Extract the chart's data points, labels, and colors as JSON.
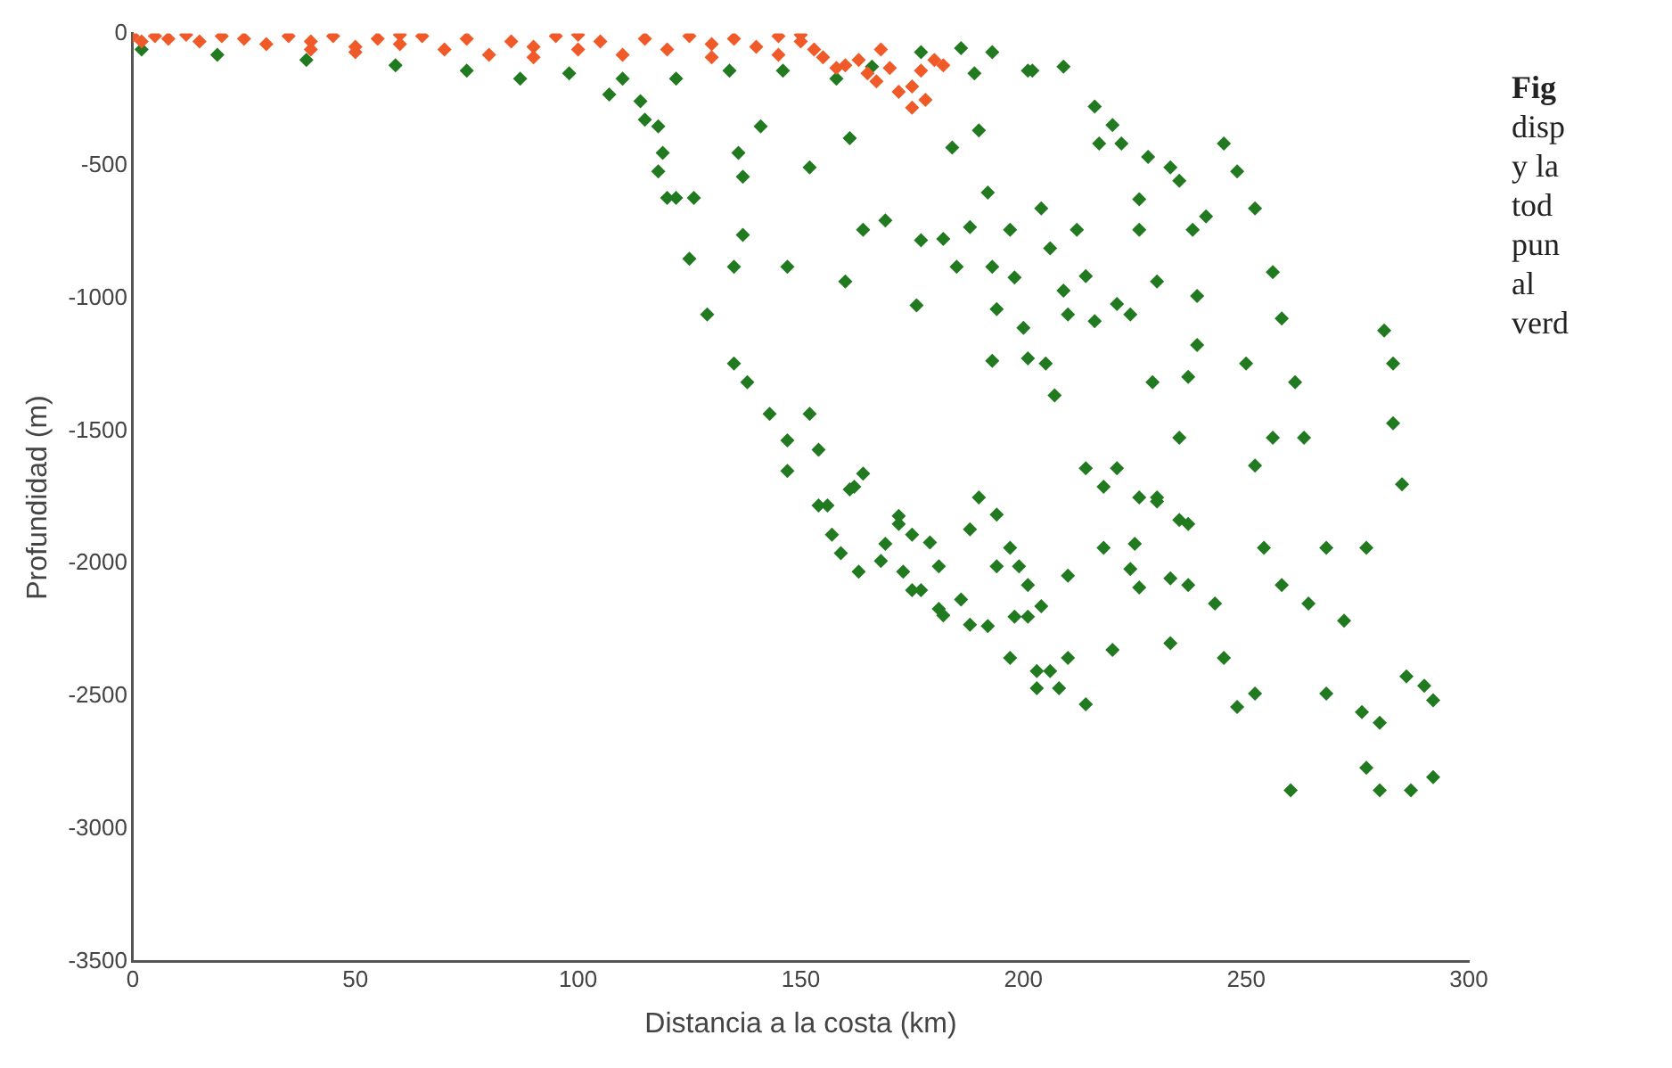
{
  "chart_data": {
    "type": "scatter",
    "xlabel": "Distancia a la costa (km)",
    "ylabel": "Profundidad (m)",
    "xlim": [
      0,
      300
    ],
    "xticks": [
      0,
      50,
      100,
      150,
      200,
      250,
      300
    ],
    "ylim": [
      -3500,
      0
    ],
    "yticks": [
      -3500,
      -3000,
      -2500,
      -2000,
      -1500,
      -1000,
      -500,
      0
    ],
    "grid": false,
    "legend": false,
    "marker": "diamond",
    "annotations": [
      "Fig",
      "disp",
      "y la",
      "tod",
      "pun",
      "al",
      "verd"
    ],
    "series": [
      {
        "color": "#217a1f",
        "x": [
          2,
          19,
          39,
          59,
          75,
          87,
          98,
          110,
          122,
          134,
          146,
          158,
          166,
          177,
          189,
          201,
          209,
          193,
          177,
          118,
          119,
          118,
          120,
          115,
          107,
          114,
          122,
          126,
          125,
          129,
          135,
          137,
          137,
          136,
          141,
          147,
          152,
          160,
          161,
          164,
          169,
          176,
          177,
          182,
          184,
          185,
          186,
          188,
          190,
          192,
          193,
          193,
          194,
          197,
          198,
          200,
          201,
          202,
          204,
          205,
          206,
          207,
          209,
          210,
          212,
          214,
          216,
          216,
          217,
          220,
          221,
          222,
          224,
          226,
          226,
          228,
          229,
          230,
          233,
          235,
          237,
          238,
          239,
          239,
          135,
          138,
          143,
          147,
          147,
          152,
          154,
          156,
          157,
          162,
          164,
          172,
          175,
          188,
          190,
          214,
          218,
          221,
          226,
          230,
          235,
          237,
          154,
          159,
          163,
          161,
          168,
          169,
          172,
          173,
          175,
          177,
          179,
          181,
          181,
          182,
          186,
          188,
          192,
          194,
          194,
          197,
          197,
          198,
          199,
          201,
          201,
          203,
          203,
          204,
          206,
          208,
          210,
          210,
          214,
          220,
          218,
          225,
          224,
          226,
          230,
          233,
          233,
          237,
          235,
          243,
          245,
          248,
          252,
          241,
          245,
          248,
          252,
          256,
          258,
          261,
          281,
          283,
          283,
          285,
          277,
          268,
          264,
          272,
          268,
          276,
          277,
          280,
          260,
          280,
          287,
          292,
          292,
          290,
          286,
          254,
          258,
          256,
          263,
          250,
          252
        ],
        "values": [
          -60,
          -80,
          -100,
          -120,
          -140,
          -170,
          -150,
          -170,
          -170,
          -140,
          -140,
          -170,
          -125,
          null,
          -150,
          -140,
          -125,
          -70,
          -70,
          -350,
          -450,
          -520,
          -620,
          -325,
          -230,
          -255,
          -620,
          -620,
          -850,
          -1060,
          -880,
          -760,
          -540,
          -450,
          -350,
          -880,
          -505,
          -935,
          -395,
          -740,
          -705,
          -1025,
          -780,
          -775,
          -430,
          -880,
          -55,
          -730,
          -365,
          -600,
          -880,
          -1235,
          -1040,
          -740,
          -920,
          -1110,
          -1225,
          -140,
          -660,
          -1245,
          -810,
          -1365,
          -970,
          -1060,
          -740,
          -915,
          -1085,
          -275,
          -415,
          -345,
          -1020,
          -415,
          -1060,
          -625,
          -740,
          -465,
          -1315,
          -935,
          -505,
          -555,
          -1295,
          -740,
          -1175,
          -990,
          -1245,
          -1315,
          -1435,
          -1535,
          -1650,
          -1435,
          -1570,
          -1780,
          -1890,
          -1710,
          -1660,
          -1850,
          -1890,
          -1870,
          -1750,
          -1640,
          -1710,
          -1640,
          -1750,
          -1750,
          -1525,
          -1850,
          -1780,
          -1960,
          -2030,
          -1720,
          -1990,
          -1925,
          -1820,
          -2030,
          -2100,
          -2100,
          -1920,
          -2010,
          -2170,
          -2195,
          -2135,
          -2230,
          -2235,
          -1815,
          -2010,
          -1940,
          -2355,
          -2200,
          -2010,
          -2080,
          -2200,
          -2405,
          -2470,
          -2160,
          -2405,
          -2470,
          -2045,
          -2355,
          -2530,
          -2325,
          -1940,
          -1925,
          -2020,
          -2090,
          -1765,
          -2055,
          -2300,
          -2080,
          -1835,
          -2150,
          -2355,
          -2540,
          -2490,
          -690,
          -415,
          -520,
          -660,
          -900,
          -1075,
          -1315,
          -1120,
          -1245,
          -1470,
          -1700,
          -1940,
          -1940,
          -2150,
          -2215,
          -2490,
          -2560,
          -2770,
          -2600,
          -2855,
          -2855,
          -2855,
          -2805,
          -2515,
          -2460,
          -2425,
          -1940,
          -2080,
          -1525,
          -1525,
          -1245,
          -1630
        ]
      },
      {
        "color": "#f05a28",
        "x": [
          0,
          2,
          5,
          8,
          12,
          15,
          20,
          25,
          30,
          35,
          40,
          45,
          50,
          55,
          60,
          65,
          70,
          75,
          80,
          85,
          90,
          95,
          100,
          105,
          110,
          115,
          120,
          125,
          130,
          135,
          140,
          145,
          150,
          153,
          155,
          158,
          160,
          163,
          165,
          167,
          170,
          172,
          175,
          177,
          180,
          182,
          178,
          175,
          168,
          150,
          100,
          60,
          130,
          145,
          90,
          50,
          40
        ],
        "values": [
          -10,
          -30,
          -10,
          -20,
          -5,
          -30,
          -10,
          -20,
          -40,
          -10,
          -30,
          -10,
          -50,
          -20,
          -40,
          -10,
          -60,
          -20,
          -80,
          -30,
          -50,
          -10,
          -60,
          -30,
          -80,
          -20,
          -60,
          -10,
          -40,
          -20,
          -50,
          -10,
          -30,
          -60,
          -90,
          -130,
          -120,
          -100,
          -150,
          -180,
          -130,
          -220,
          -200,
          -140,
          -100,
          -120,
          -250,
          -280,
          -60,
          -5,
          -5,
          -5,
          -90,
          -80,
          -90,
          -70,
          -60
        ]
      }
    ]
  }
}
